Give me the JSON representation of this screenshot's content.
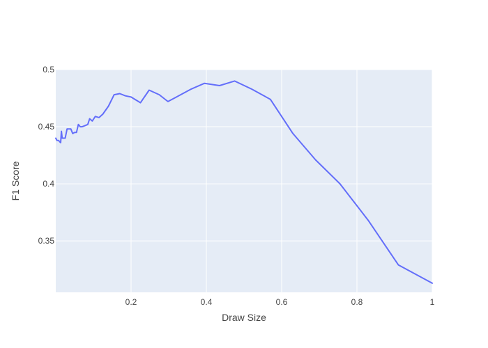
{
  "chart_data": {
    "type": "line",
    "title": "",
    "xlabel": "Draw Size",
    "ylabel": "F1 Score",
    "xlim": [
      0.0,
      1.0
    ],
    "ylim": [
      0.305,
      0.5
    ],
    "x_ticks": [
      0.2,
      0.4,
      0.6,
      0.8,
      1.0
    ],
    "x_tick_labels": [
      "0.2",
      "0.4",
      "0.6",
      "0.8",
      "1"
    ],
    "y_ticks": [
      0.35,
      0.4,
      0.45,
      0.5
    ],
    "y_tick_labels": [
      "0.35",
      "0.4",
      "0.45",
      "0.5"
    ],
    "grid": true,
    "legend": false,
    "colors": {
      "plot_background": "#e5ecf6",
      "grid": "#ffffff",
      "line": "#636efa"
    },
    "series": [
      {
        "x": [
          0.0,
          0.003,
          0.007,
          0.013,
          0.015,
          0.017,
          0.02,
          0.025,
          0.03,
          0.035,
          0.04,
          0.045,
          0.05,
          0.055,
          0.06,
          0.065,
          0.07,
          0.078,
          0.085,
          0.09,
          0.097,
          0.105,
          0.115,
          0.125,
          0.14,
          0.155,
          0.17,
          0.185,
          0.2,
          0.225,
          0.248,
          0.275,
          0.298,
          0.36,
          0.395,
          0.435,
          0.475,
          0.52,
          0.57,
          0.63,
          0.69,
          0.755,
          0.83,
          0.91,
          1.0
        ],
        "y": [
          0.44,
          0.438,
          0.438,
          0.436,
          0.446,
          0.44,
          0.44,
          0.44,
          0.448,
          0.448,
          0.448,
          0.444,
          0.445,
          0.445,
          0.452,
          0.45,
          0.45,
          0.451,
          0.452,
          0.457,
          0.455,
          0.459,
          0.458,
          0.461,
          0.468,
          0.478,
          0.479,
          0.477,
          0.476,
          0.471,
          0.482,
          0.478,
          0.472,
          0.483,
          0.488,
          0.486,
          0.49,
          0.483,
          0.474,
          0.444,
          0.421,
          0.4,
          0.368,
          0.329,
          0.313
        ]
      }
    ]
  }
}
